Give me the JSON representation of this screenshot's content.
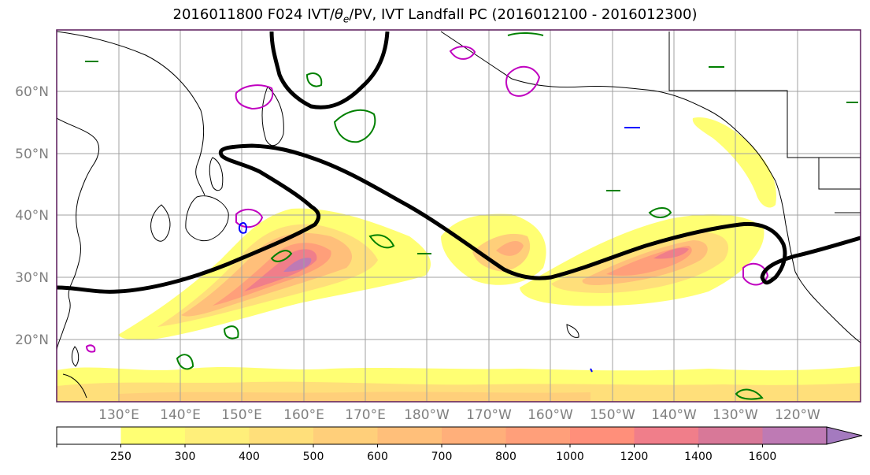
{
  "title": {
    "prefix": "2016011800 F024 IVT/",
    "theta": "θ",
    "theta_sub": "e",
    "suffix": "/PV, IVT Landfall PC (2016012100 - 2016012300)"
  },
  "map": {
    "lat_labels": [
      "60°N",
      "50°N",
      "40°N",
      "30°N",
      "20°N"
    ],
    "lon_labels": [
      "130°E",
      "140°E",
      "150°E",
      "160°E",
      "170°E",
      "180°W",
      "170°W",
      "160°W",
      "150°W",
      "140°W",
      "130°W",
      "120°W"
    ]
  },
  "colorbar": {
    "labels": [
      "250",
      "300",
      "400",
      "500",
      "600",
      "700",
      "800",
      "1000",
      "1200",
      "1400",
      "1600"
    ],
    "colors": [
      "#ffff73",
      "#ffef7a",
      "#ffdf7a",
      "#ffcf7a",
      "#ffbf7a",
      "#ffaf7a",
      "#ff9f7a",
      "#ff8f7a",
      "#f07e8a",
      "#d87898",
      "#be7ab4",
      "#a47abf"
    ]
  },
  "colors": {
    "ivt_path": "#000000",
    "theta_contour": "#008000",
    "pv_contour": "#c000c0",
    "low_contour": "#0000ff",
    "frame": "#5a1a5a"
  }
}
